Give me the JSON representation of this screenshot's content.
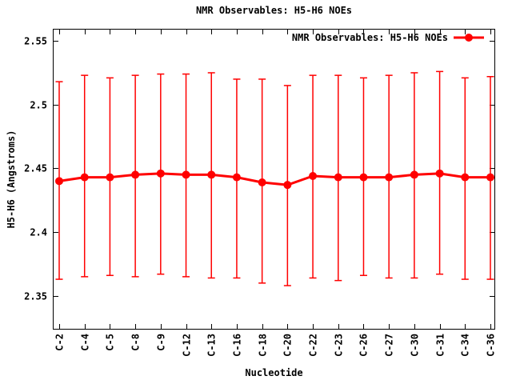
{
  "chart_data": {
    "type": "line",
    "title": "NMR Observables: H5-H6 NOEs",
    "xlabel": "Nucleotide",
    "ylabel": "H5-H6 (Angstroms)",
    "grid": false,
    "legend": {
      "label": "NMR Observables: H5-H6 NOEs",
      "position": "top-right-inside"
    },
    "categories": [
      "C-2",
      "C-4",
      "C-5",
      "C-8",
      "C-9",
      "C-12",
      "C-13",
      "C-16",
      "C-18",
      "C-20",
      "C-22",
      "C-23",
      "C-26",
      "C-27",
      "C-30",
      "C-31",
      "C-34",
      "C-36"
    ],
    "series": [
      {
        "name": "NMR Observables: H5-H6 NOEs",
        "values": [
          2.44,
          2.443,
          2.443,
          2.445,
          2.446,
          2.445,
          2.445,
          2.443,
          2.439,
          2.437,
          2.444,
          2.443,
          2.443,
          2.443,
          2.445,
          2.446,
          2.443,
          2.443
        ],
        "err_high": [
          2.518,
          2.523,
          2.521,
          2.523,
          2.524,
          2.524,
          2.525,
          2.52,
          2.52,
          2.515,
          2.523,
          2.523,
          2.521,
          2.523,
          2.525,
          2.526,
          2.521,
          2.522
        ],
        "err_low": [
          2.363,
          2.365,
          2.366,
          2.365,
          2.367,
          2.365,
          2.364,
          2.364,
          2.36,
          2.358,
          2.364,
          2.362,
          2.366,
          2.364,
          2.364,
          2.367,
          2.363,
          2.363
        ]
      }
    ],
    "yticks": [
      {
        "value": 2.35,
        "label": "2.35"
      },
      {
        "value": 2.4,
        "label": "2.4"
      },
      {
        "value": 2.45,
        "label": "2.45"
      },
      {
        "value": 2.5,
        "label": "2.5"
      },
      {
        "value": 2.55,
        "label": "2.55"
      }
    ],
    "ylim": [
      2.3235,
      2.5595
    ],
    "colors": {
      "series": "#ff0000",
      "axis": "#000000",
      "background": "#ffffff"
    }
  }
}
